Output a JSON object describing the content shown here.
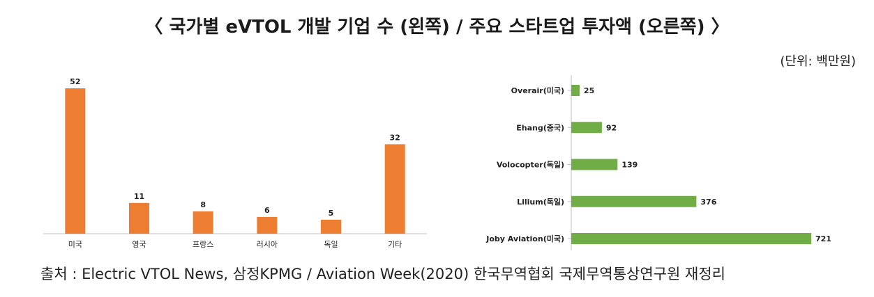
{
  "title": "〈 국가별 eVTOL 개발 기업 수 (왼쪽) / 주요 스타트업 투자액 (오른쪽) 〉",
  "unit": "(단위: 백만원)",
  "source": "출처 : Electric VTOL News, 삼정KPMG / Aviation Week(2020) 한국무역협회 국제무역통상연구원 재정리",
  "colors": {
    "left_bar": "#ED7D31",
    "right_bar": "#70AD47",
    "axis": "#BFBFBF"
  },
  "chart_data": [
    {
      "type": "bar",
      "categories": [
        "미국",
        "영국",
        "프랑스",
        "러시아",
        "독일",
        "기타"
      ],
      "values": [
        52,
        11,
        8,
        6,
        5,
        32
      ],
      "ylim": [
        0,
        52
      ]
    },
    {
      "type": "bar",
      "orientation": "horizontal",
      "categories": [
        "Overair(미국)",
        "Ehang(중국)",
        "Volocopter(독일)",
        "Lilium(독일)",
        "Joby Aviation(미국)"
      ],
      "values": [
        25,
        92,
        139,
        376,
        721
      ],
      "xlim": [
        0,
        721
      ]
    }
  ]
}
